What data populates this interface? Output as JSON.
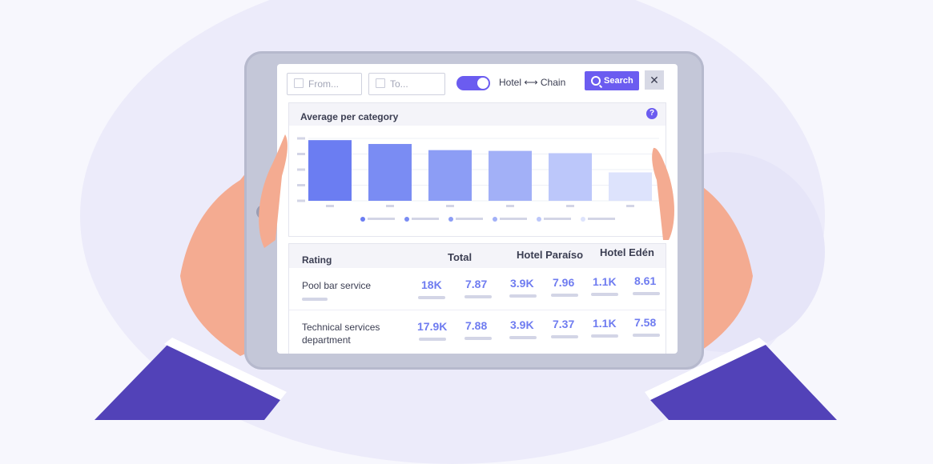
{
  "toolbar": {
    "from_placeholder": "From...",
    "to_placeholder": "To...",
    "toggle_label": "Hotel ⟷ Chain",
    "toggle_on": true,
    "search_label": "Search",
    "close_label": "✕"
  },
  "chart": {
    "title": "Average per category",
    "help": "?",
    "bar_colors": [
      "#6b7df2",
      "#7a8cf3",
      "#8c9df5",
      "#a2b0f7",
      "#bcc7fa",
      "#dde3fc"
    ]
  },
  "chart_data": {
    "type": "bar",
    "categories": [
      "",
      "",
      "",
      "",
      "",
      ""
    ],
    "values": [
      79,
      74,
      66,
      65,
      62,
      37
    ],
    "ylim": [
      0,
      100
    ]
  },
  "table": {
    "headers": {
      "rating": "Rating",
      "total": "Total",
      "hotel1": "Hotel Paraíso",
      "hotel2": "Hotel Edén"
    },
    "rows": [
      {
        "label": "Pool bar service",
        "values": [
          "18K",
          "7.87",
          "3.9K",
          "7.96",
          "1.1K",
          "8.61"
        ]
      },
      {
        "label": "Technical services department",
        "values": [
          "17.9K",
          "7.88",
          "3.9K",
          "7.37",
          "1.1K",
          "7.58"
        ]
      }
    ]
  },
  "colors": {
    "accent": "#6b5cf0",
    "number": "#6f7cf0",
    "sleeve": "#5242b8",
    "skin": "#f4ab91"
  }
}
